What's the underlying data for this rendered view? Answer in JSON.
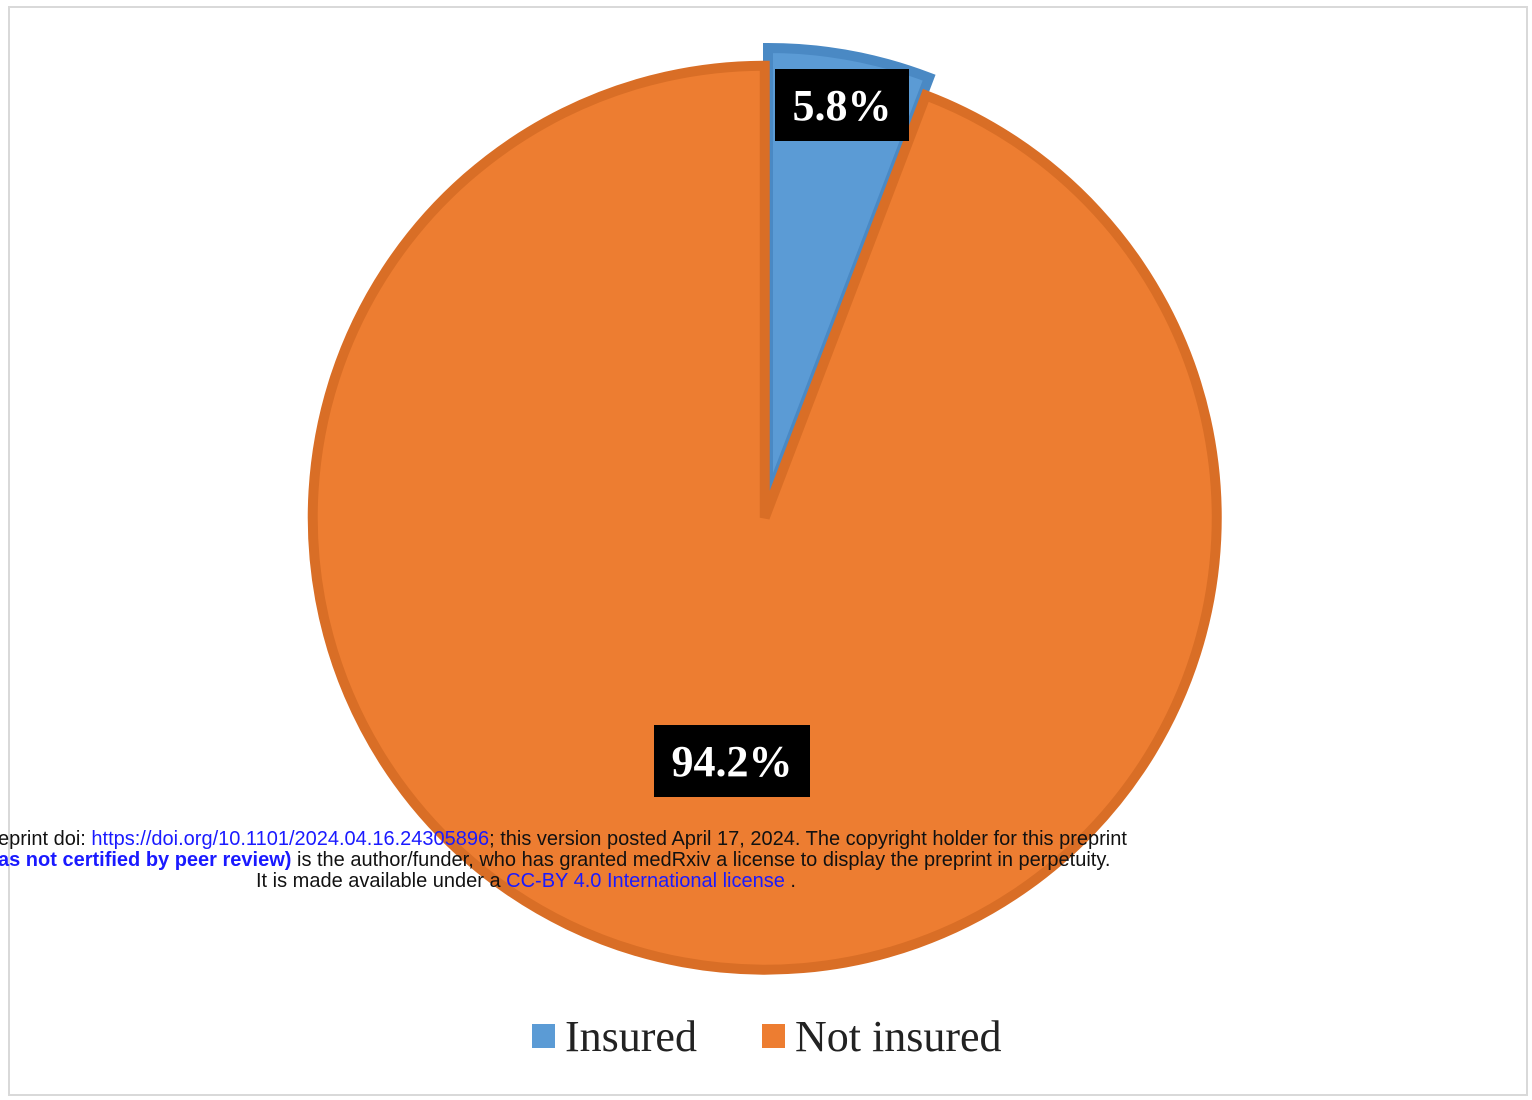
{
  "chart_data": {
    "type": "pie",
    "slices": [
      {
        "label": "Insured",
        "value": 5.8,
        "display": "5.8%",
        "color": "#5b9bd5",
        "edge": "#4a89c4"
      },
      {
        "label": "Not insured",
        "value": 94.2,
        "display": "94.2%",
        "color": "#ed7d31",
        "edge": "#d96e26"
      }
    ],
    "start_angle": "12 o'clock",
    "direction": "clockwise",
    "legend": {
      "position": "bottom",
      "entries": [
        "Insured",
        "Not insured"
      ]
    }
  },
  "watermark": {
    "line1_prefix": "eprint doi: ",
    "line1_link": "https://doi.org/10.1101/2024.04.16.24305896",
    "line1_suffix": "; this version posted April 17, 2024. The copyright holder for this preprint",
    "line2_bold": "as not certified by peer review)",
    "line2_suffix": " is the author/funder, who has granted medRxiv a license to display the preprint in perpetuity.",
    "line3_prefix": "It is made available under a ",
    "line3_link": "CC-BY 4.0 International license",
    "line3_suffix": " ."
  }
}
